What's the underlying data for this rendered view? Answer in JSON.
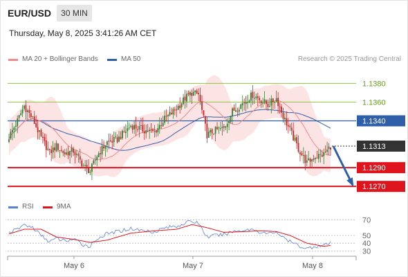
{
  "header": {
    "symbol": "EUR/USD",
    "timeframe": "30 MIN",
    "datetime": "Thursday, May 8, 2025 3:41:26 AM CET"
  },
  "legend": {
    "ma20_label": "MA 20 + Bollinger Bands",
    "ma50_label": "MA 50",
    "credit": "Research © 2025 Trading Central",
    "rsi_label": "RSI",
    "ma9_label": "9MA"
  },
  "colors": {
    "ma20": "#f08a8a",
    "ma50": "#2f5fa8",
    "band_fill": "#fde4e4",
    "bull": "#2e7d32",
    "bear": "#c62828",
    "support": "#e0141c",
    "pivot": "#2f5fa8",
    "resistance": "#8cc63f",
    "arrow": "#2f5fa8",
    "rsi": "#5b7fd6",
    "rsi_ma": "#e0141c"
  },
  "chart_data": [
    {
      "type": "candlestick",
      "instrument": "EUR/USD",
      "interval": "30 MIN",
      "x_ticks": [
        "May 6",
        "May 7",
        "May 8"
      ],
      "ylim": [
        1.1262,
        1.1398
      ],
      "levels": [
        {
          "label": "1.1380",
          "value": 1.138,
          "kind": "resistance"
        },
        {
          "label": "1.1360",
          "value": 1.136,
          "kind": "resistance"
        },
        {
          "label": "1.1340",
          "value": 1.134,
          "kind": "pivot"
        },
        {
          "label": "1.1313",
          "value": 1.1313,
          "kind": "last_price"
        },
        {
          "label": "1.1290",
          "value": 1.129,
          "kind": "support"
        },
        {
          "label": "1.1270",
          "value": 1.127,
          "kind": "support"
        }
      ],
      "projection": {
        "from": 1.1313,
        "to": 1.127
      },
      "close_anchors": [
        [
          0,
          1.1323
        ],
        [
          5,
          1.134
        ],
        [
          9,
          1.1356
        ],
        [
          14,
          1.1342
        ],
        [
          19,
          1.1322
        ],
        [
          24,
          1.1306
        ],
        [
          28,
          1.1313
        ],
        [
          33,
          1.1305
        ],
        [
          38,
          1.1308
        ],
        [
          44,
          1.1292
        ],
        [
          48,
          1.1286
        ],
        [
          52,
          1.1303
        ],
        [
          58,
          1.1317
        ],
        [
          64,
          1.132
        ],
        [
          72,
          1.1335
        ],
        [
          80,
          1.133
        ],
        [
          86,
          1.1328
        ],
        [
          92,
          1.1342
        ],
        [
          99,
          1.1353
        ],
        [
          104,
          1.1364
        ],
        [
          108,
          1.137
        ],
        [
          112,
          1.1368
        ],
        [
          117,
          1.1325
        ],
        [
          122,
          1.133
        ],
        [
          127,
          1.1332
        ],
        [
          132,
          1.135
        ],
        [
          139,
          1.136
        ],
        [
          144,
          1.1368
        ],
        [
          149,
          1.1362
        ],
        [
          153,
          1.1357
        ],
        [
          158,
          1.1364
        ],
        [
          162,
          1.1345
        ],
        [
          166,
          1.133
        ],
        [
          171,
          1.131
        ],
        [
          176,
          1.1295
        ],
        [
          181,
          1.1302
        ],
        [
          186,
          1.1304
        ],
        [
          190,
          1.1313
        ]
      ]
    },
    {
      "type": "line",
      "name": "RSI",
      "ylim": [
        25,
        75
      ],
      "y_ticks": [
        70,
        50,
        40,
        30
      ],
      "series": [
        {
          "name": "RSI",
          "anchors": [
            [
              0,
              54
            ],
            [
              5,
              58
            ],
            [
              9,
              64
            ],
            [
              14,
              60
            ],
            [
              19,
              50
            ],
            [
              24,
              42
            ],
            [
              28,
              46
            ],
            [
              33,
              43
            ],
            [
              38,
              45
            ],
            [
              44,
              38
            ],
            [
              48,
              36
            ],
            [
              52,
              46
            ],
            [
              58,
              52
            ],
            [
              64,
              55
            ],
            [
              72,
              59
            ],
            [
              80,
              56
            ],
            [
              86,
              55
            ],
            [
              92,
              60
            ],
            [
              99,
              62
            ],
            [
              104,
              66
            ],
            [
              108,
              68
            ],
            [
              112,
              66
            ],
            [
              117,
              48
            ],
            [
              122,
              50
            ],
            [
              127,
              51
            ],
            [
              132,
              55
            ],
            [
              139,
              57
            ],
            [
              144,
              58
            ],
            [
              149,
              54
            ],
            [
              153,
              52
            ],
            [
              158,
              55
            ],
            [
              162,
              47
            ],
            [
              166,
              42
            ],
            [
              171,
              37
            ],
            [
              176,
              33
            ],
            [
              181,
              36
            ],
            [
              186,
              37
            ],
            [
              190,
              40
            ]
          ]
        },
        {
          "name": "9MA",
          "anchors": [
            [
              0,
              52
            ],
            [
              9,
              58
            ],
            [
              19,
              58
            ],
            [
              28,
              48
            ],
            [
              38,
              45
            ],
            [
              48,
              41
            ],
            [
              58,
              44
            ],
            [
              72,
              53
            ],
            [
              86,
              56
            ],
            [
              99,
              58
            ],
            [
              108,
              64
            ],
            [
              117,
              60
            ],
            [
              127,
              54
            ],
            [
              139,
              55
            ],
            [
              149,
              56
            ],
            [
              158,
              55
            ],
            [
              166,
              50
            ],
            [
              176,
              40
            ],
            [
              186,
              36
            ],
            [
              190,
              37
            ]
          ]
        }
      ]
    }
  ]
}
